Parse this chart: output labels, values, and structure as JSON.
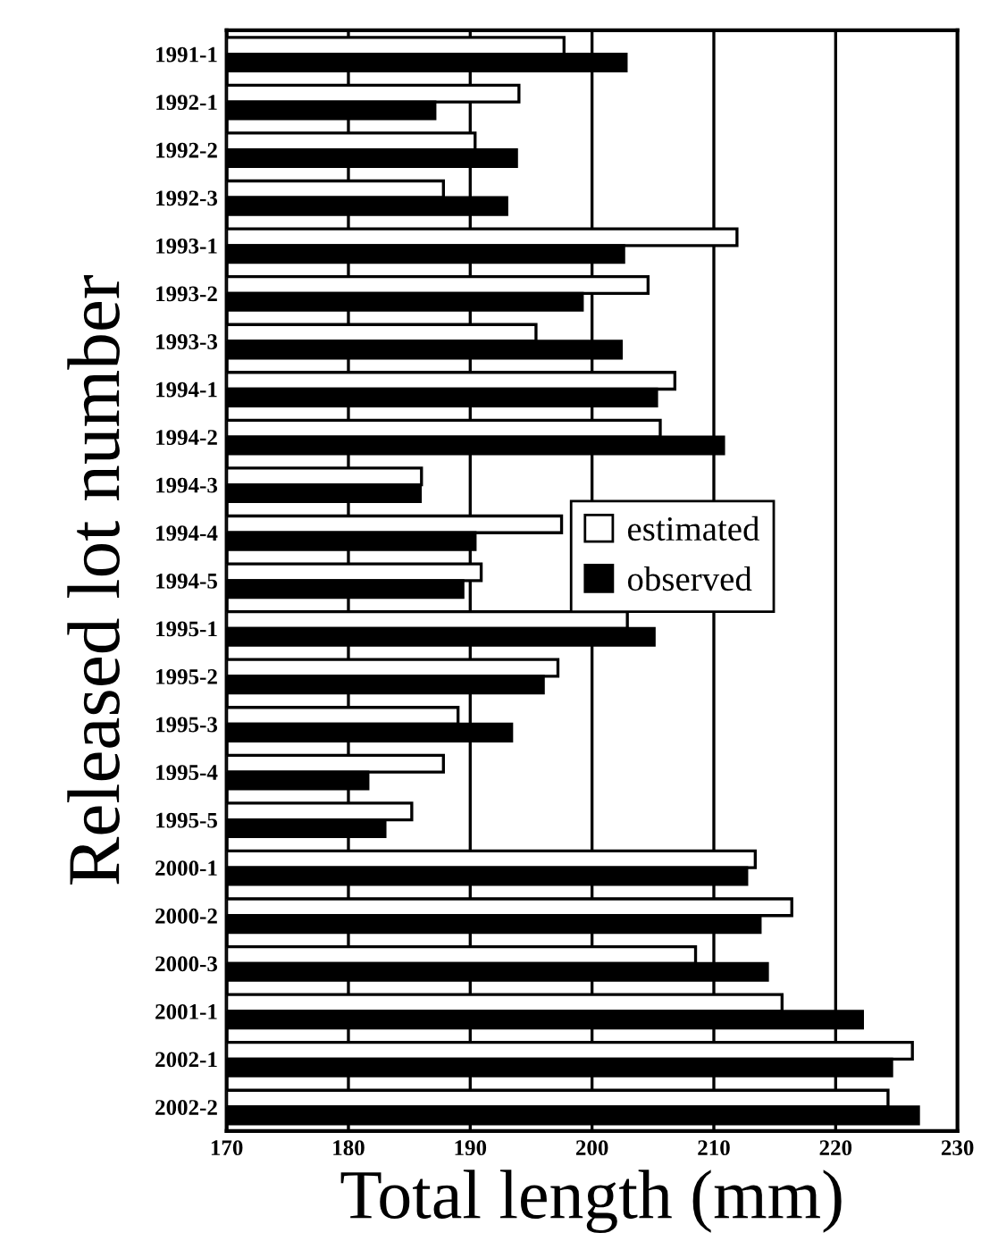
{
  "chart_data": {
    "type": "bar",
    "orientation": "horizontal",
    "xlabel": "Total length (mm)",
    "ylabel": "Released lot number",
    "categories": [
      "1991-1",
      "1992-1",
      "1992-2",
      "1992-3",
      "1993-1",
      "1993-2",
      "1993-3",
      "1994-1",
      "1994-2",
      "1994-3",
      "1994-4",
      "1994-5",
      "1995-1",
      "1995-2",
      "1995-3",
      "1995-4",
      "1995-5",
      "2000-1",
      "2000-2",
      "2000-3",
      "2001-1",
      "2002-1",
      "2002-2"
    ],
    "series": [
      {
        "name": "estimated",
        "color": "#ffffff",
        "values": [
          197.7,
          194.0,
          190.4,
          187.8,
          211.9,
          204.6,
          195.4,
          206.8,
          205.6,
          186.0,
          197.5,
          190.9,
          202.9,
          197.2,
          189.0,
          187.8,
          185.2,
          213.4,
          216.4,
          208.5,
          215.6,
          226.3,
          224.3
        ]
      },
      {
        "name": "observed",
        "color": "#000000",
        "values": [
          202.8,
          187.1,
          193.8,
          193.0,
          202.6,
          199.2,
          202.4,
          205.3,
          210.8,
          185.9,
          190.4,
          189.4,
          205.1,
          196.0,
          193.4,
          181.6,
          183.0,
          212.7,
          213.8,
          214.4,
          222.2,
          224.6,
          226.8
        ]
      }
    ],
    "xlim": [
      170,
      230
    ],
    "xticks": [
      170,
      180,
      190,
      200,
      210,
      220,
      230
    ],
    "grid": "x",
    "legend": "right"
  }
}
